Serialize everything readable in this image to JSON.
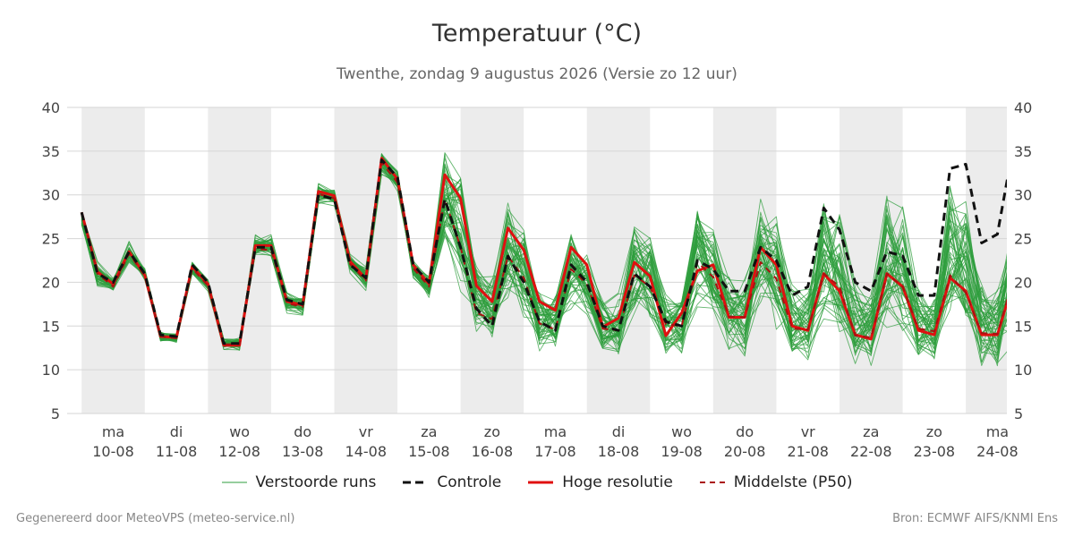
{
  "header": {
    "title": "Temperatuur (°C)",
    "subtitle": "Twenthe, zondag  9 augustus 2026 (Versie zo 12 uur)"
  },
  "footer": {
    "left": "Gegenereerd door MeteoVPS (meteo-service.nl)",
    "right": "Bron: ECMWF AIFS/KNMI Ens"
  },
  "legend": {
    "items": [
      {
        "key": "ensemble",
        "label": "Verstoorde runs",
        "style": "thin",
        "color": "#2e9e3c"
      },
      {
        "key": "control",
        "label": "Controle",
        "style": "dashed",
        "color": "#111111"
      },
      {
        "key": "hires",
        "label": "Hoge resolutie",
        "style": "solid",
        "color": "#e01010"
      },
      {
        "key": "p50",
        "label": "Middelste (P50)",
        "style": "dashed",
        "color": "#aa1111"
      }
    ]
  },
  "chart_data": {
    "type": "line",
    "ylim": [
      5,
      40
    ],
    "yticks": [
      5,
      10,
      15,
      20,
      25,
      30,
      35,
      40
    ],
    "xlim": [
      -0.23,
      14.65
    ],
    "grid": true,
    "legend_position": "bottom",
    "day_labels": [
      {
        "x": 0.5,
        "day": "ma",
        "date": "10-08"
      },
      {
        "x": 1.5,
        "day": "di",
        "date": "11-08"
      },
      {
        "x": 2.5,
        "day": "wo",
        "date": "12-08"
      },
      {
        "x": 3.5,
        "day": "do",
        "date": "13-08"
      },
      {
        "x": 4.5,
        "day": "vr",
        "date": "14-08"
      },
      {
        "x": 5.5,
        "day": "za",
        "date": "15-08"
      },
      {
        "x": 6.5,
        "day": "zo",
        "date": "16-08"
      },
      {
        "x": 7.5,
        "day": "ma",
        "date": "17-08"
      },
      {
        "x": 8.5,
        "day": "di",
        "date": "18-08"
      },
      {
        "x": 9.5,
        "day": "wo",
        "date": "19-08"
      },
      {
        "x": 10.5,
        "day": "do",
        "date": "20-08"
      },
      {
        "x": 11.5,
        "day": "vr",
        "date": "21-08"
      },
      {
        "x": 12.5,
        "day": "za",
        "date": "22-08"
      },
      {
        "x": 13.5,
        "day": "zo",
        "date": "23-08"
      },
      {
        "x": 14.5,
        "day": "ma",
        "date": "24-08"
      }
    ],
    "shaded_days": [
      [
        0,
        1
      ],
      [
        2,
        3
      ],
      [
        4,
        5
      ],
      [
        6,
        7
      ],
      [
        8,
        9
      ],
      [
        10,
        11
      ],
      [
        12,
        13
      ],
      [
        14,
        14.65
      ]
    ],
    "x": [
      -0.25,
      0,
      0.25,
      0.5,
      0.75,
      1,
      1.25,
      1.5,
      1.75,
      2,
      2.25,
      2.5,
      2.75,
      3,
      3.25,
      3.5,
      3.75,
      4,
      4.25,
      4.5,
      4.75,
      5,
      5.25,
      5.5,
      5.75,
      6,
      6.25,
      6.5,
      6.75,
      7,
      7.25,
      7.5,
      7.75,
      8,
      8.25,
      8.5,
      8.75,
      9,
      9.25,
      9.5,
      9.75,
      10,
      10.25,
      10.5,
      10.75,
      11,
      11.25,
      11.5,
      11.75,
      12,
      12.25,
      12.5,
      12.75,
      13,
      13.25,
      13.5,
      13.75,
      14,
      14.25,
      14.5,
      14.75
    ],
    "series": [
      {
        "name": "Controle",
        "color": "#111111",
        "dash": "dashed",
        "values": [
          null,
          28.0,
          21.0,
          20.0,
          23.5,
          21.0,
          14.0,
          13.8,
          22.0,
          20.0,
          13.0,
          13.0,
          24.0,
          24.0,
          18.0,
          17.5,
          30.0,
          29.5,
          22.0,
          20.5,
          34.0,
          32.0,
          22.0,
          20.0,
          29.5,
          24.0,
          17.0,
          15.0,
          23.0,
          20.0,
          15.5,
          14.5,
          22.0,
          20.0,
          15.0,
          14.5,
          21.0,
          19.5,
          15.5,
          15.0,
          22.5,
          21.5,
          19.0,
          19.0,
          24.0,
          22.5,
          18.5,
          19.5,
          28.5,
          26.0,
          20.0,
          19.0,
          23.5,
          23.0,
          18.5,
          18.5,
          33.0,
          33.5,
          24.5,
          25.5,
          35.5
        ]
      },
      {
        "name": "Hoge resolutie",
        "color": "#e01010",
        "dash": "solid",
        "values": [
          null,
          28.0,
          21.2,
          19.8,
          23.5,
          20.8,
          13.8,
          13.7,
          21.8,
          19.8,
          12.8,
          12.8,
          24.2,
          24.2,
          17.8,
          17.4,
          30.4,
          29.9,
          22.4,
          20.4,
          34.2,
          31.8,
          22.0,
          19.8,
          32.3,
          29.6,
          19.6,
          17.8,
          26.2,
          23.7,
          17.8,
          16.8,
          24.0,
          22.0,
          14.9,
          15.9,
          22.3,
          20.7,
          13.9,
          16.5,
          21.3,
          22.0,
          16.0,
          16.0,
          24.0,
          22.0,
          15.0,
          14.5,
          21.0,
          19.0,
          14.0,
          13.5,
          21.0,
          19.5,
          14.5,
          14.0,
          20.5,
          19.0,
          14.0,
          14.0,
          20.0
        ]
      },
      {
        "name": "Middelste (P50)",
        "color": "#aa1111",
        "dash": "dashed",
        "values": [
          null,
          28.0,
          21.0,
          19.5,
          23.3,
          20.7,
          13.8,
          13.6,
          21.6,
          19.6,
          12.9,
          12.9,
          23.8,
          23.7,
          17.6,
          17.2,
          30.1,
          29.6,
          22.1,
          20.2,
          33.7,
          31.4,
          21.6,
          19.5,
          29.5,
          24.0,
          16.5,
          15.8,
          23.0,
          20.5,
          15.3,
          14.6,
          21.5,
          19.8,
          14.7,
          14.5,
          20.8,
          19.5,
          15.2,
          15.0,
          22.3,
          20.6,
          16.1,
          16.0,
          22.3,
          20.4,
          14.7,
          14.6,
          21.0,
          19.5,
          13.9,
          13.7,
          21.0,
          19.5,
          14.7,
          14.4,
          20.8,
          18.8,
          14.2,
          14.1,
          20.4
        ]
      }
    ],
    "ensemble": {
      "name": "Verstoorde runs",
      "color": "#2e9e3c",
      "members": 50,
      "p10": [
        null,
        26.5,
        19.0,
        18.6,
        22.0,
        20.2,
        13.0,
        13.0,
        20.8,
        18.9,
        12.2,
        12.2,
        22.6,
        22.6,
        16.5,
        16.2,
        28.9,
        28.4,
        21.0,
        19.0,
        32.3,
        29.9,
        20.2,
        18.0,
        26.0,
        21.0,
        15.0,
        14.5,
        19.5,
        17.0,
        13.5,
        13.0,
        18.5,
        17.5,
        12.5,
        12.5,
        17.5,
        16.5,
        12.5,
        13.0,
        19.0,
        17.5,
        13.5,
        13.0,
        19.0,
        17.0,
        12.0,
        12.5,
        17.5,
        16.0,
        12.0,
        12.0,
        17.0,
        16.0,
        12.0,
        12.0,
        17.5,
        15.5,
        11.5,
        11.5,
        16.0
      ],
      "p90": [
        null,
        28.2,
        22.5,
        20.6,
        24.8,
        21.6,
        14.4,
        14.2,
        22.4,
        20.4,
        13.8,
        13.7,
        25.6,
        25.6,
        19.0,
        18.4,
        31.4,
        30.9,
        23.4,
        21.8,
        35.0,
        33.0,
        23.0,
        21.0,
        33.5,
        30.5,
        21.0,
        19.5,
        28.0,
        25.0,
        18.0,
        17.5,
        24.5,
        22.0,
        17.0,
        17.5,
        25.5,
        24.0,
        17.5,
        17.5,
        27.0,
        25.0,
        19.5,
        19.0,
        28.0,
        25.5,
        18.5,
        18.0,
        27.5,
        25.5,
        18.5,
        17.5,
        28.0,
        26.0,
        18.0,
        17.5,
        28.5,
        27.5,
        18.5,
        18.0,
        26.0
      ]
    }
  }
}
